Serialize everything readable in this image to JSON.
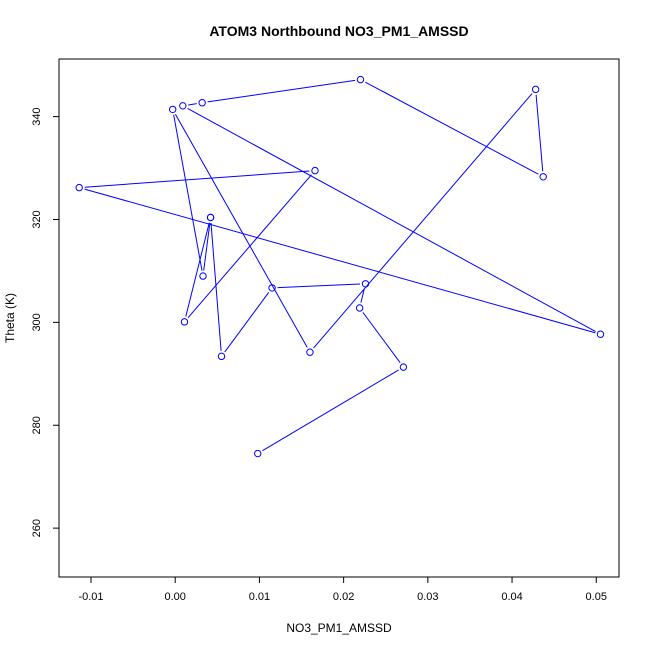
{
  "chart_data": {
    "type": "line",
    "title": "ATOM3 Northbound NO3_PM1_AMSSD",
    "xlabel": "NO3_PM1_AMSSD",
    "ylabel": "Theta (K)",
    "xlim": [
      -0.0138,
      0.0527
    ],
    "ylim": [
      250.5,
      351.2
    ],
    "x_ticks": [
      -0.01,
      0.0,
      0.01,
      0.02,
      0.03,
      0.04,
      0.05
    ],
    "x_tick_labels": [
      "-0.01",
      "0.00",
      "0.01",
      "0.02",
      "0.03",
      "0.04",
      "0.05"
    ],
    "y_ticks": [
      260,
      280,
      300,
      320,
      340
    ],
    "y_tick_labels": [
      "260",
      "280",
      "300",
      "320",
      "340"
    ],
    "grid": false,
    "series": [
      {
        "color": "#0000ff",
        "marker": "open-circle",
        "x": [
          0.0098,
          0.0271,
          0.0219,
          0.0226,
          0.0115,
          0.0055,
          0.0042,
          0.0011,
          0.0166,
          -0.0114,
          0.0505,
          0.0009,
          0.0032,
          0.022,
          0.0437,
          0.0428,
          0.016,
          -0.0003,
          0.0033,
          0.0042
        ],
        "y": [
          274.5,
          291.3,
          302.8,
          307.5,
          306.7,
          293.4,
          320.4,
          300.1,
          329.5,
          326.2,
          297.7,
          342.1,
          342.7,
          347.2,
          328.3,
          345.3,
          294.2,
          341.4,
          309.0,
          320.4
        ]
      }
    ]
  }
}
